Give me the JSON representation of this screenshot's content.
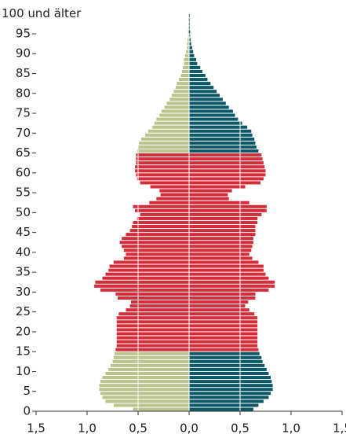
{
  "chart_data": {
    "type": "pyramid",
    "y": [
      0,
      1,
      2,
      3,
      4,
      5,
      6,
      7,
      8,
      9,
      10,
      11,
      12,
      13,
      14,
      15,
      16,
      17,
      18,
      19,
      20,
      21,
      22,
      23,
      24,
      25,
      26,
      27,
      28,
      29,
      30,
      31,
      32,
      33,
      34,
      35,
      36,
      37,
      38,
      39,
      40,
      41,
      42,
      43,
      44,
      45,
      46,
      47,
      48,
      49,
      50,
      51,
      52,
      53,
      54,
      55,
      56,
      57,
      58,
      59,
      60,
      61,
      62,
      63,
      64,
      65,
      66,
      67,
      68,
      69,
      70,
      71,
      72,
      73,
      74,
      75,
      76,
      77,
      78,
      79,
      80,
      81,
      82,
      83,
      84,
      85,
      86,
      87,
      88,
      89,
      90,
      91,
      92,
      93,
      94,
      95,
      96,
      97,
      98,
      99
    ],
    "series": [
      {
        "direction": "left",
        "values": [
          0.55,
          0.74,
          0.82,
          0.85,
          0.87,
          0.88,
          0.88,
          0.87,
          0.85,
          0.82,
          0.79,
          0.77,
          0.75,
          0.74,
          0.73,
          0.72,
          0.71,
          0.71,
          0.71,
          0.71,
          0.71,
          0.71,
          0.71,
          0.71,
          0.69,
          0.62,
          0.58,
          0.57,
          0.7,
          0.72,
          0.87,
          0.93,
          0.92,
          0.85,
          0.82,
          0.79,
          0.78,
          0.74,
          0.64,
          0.62,
          0.64,
          0.66,
          0.68,
          0.66,
          0.62,
          0.58,
          0.56,
          0.55,
          0.51,
          0.48,
          0.53,
          0.55,
          0.39,
          0.32,
          0.28,
          0.29,
          0.38,
          0.48,
          0.51,
          0.52,
          0.53,
          0.53,
          0.52,
          0.52,
          0.52,
          0.51,
          0.5,
          0.49,
          0.47,
          0.43,
          0.4,
          0.36,
          0.34,
          0.32,
          0.29,
          0.27,
          0.24,
          0.22,
          0.19,
          0.17,
          0.15,
          0.13,
          0.12,
          0.1,
          0.08,
          0.07,
          0.06,
          0.05,
          0.05,
          0.04,
          0.03,
          0.02,
          0.02,
          0.015,
          0.01,
          0.01,
          0.005,
          0.005,
          0.005,
          0.005
        ],
        "colors": [
          "#bcc48e",
          "#bcc48e",
          "#bcc48e",
          "#bcc48e",
          "#bcc48e",
          "#bcc48e",
          "#bcc48e",
          "#bcc48e",
          "#bcc48e",
          "#bcc48e",
          "#bcc48e",
          "#bcc48e",
          "#bcc48e",
          "#bcc48e",
          "#bcc48e",
          "#d42e3a",
          "#d42e3a",
          "#d42e3a",
          "#d42e3a",
          "#d42e3a",
          "#d42e3a",
          "#d42e3a",
          "#d42e3a",
          "#d42e3a",
          "#d42e3a",
          "#d42e3a",
          "#d42e3a",
          "#d42e3a",
          "#d42e3a",
          "#d42e3a",
          "#d42e3a",
          "#d42e3a",
          "#d42e3a",
          "#d42e3a",
          "#d42e3a",
          "#d42e3a",
          "#d42e3a",
          "#d42e3a",
          "#d42e3a",
          "#d42e3a",
          "#d42e3a",
          "#d42e3a",
          "#d42e3a",
          "#d42e3a",
          "#d42e3a",
          "#d42e3a",
          "#d42e3a",
          "#d42e3a",
          "#d42e3a",
          "#d42e3a",
          "#d42e3a",
          "#d42e3a",
          "#d42e3a",
          "#d42e3a",
          "#d42e3a",
          "#d42e3a",
          "#d42e3a",
          "#d42e3a",
          "#d42e3a",
          "#d42e3a",
          "#d42e3a",
          "#d42e3a",
          "#d42e3a",
          "#d42e3a",
          "#d42e3a",
          "#bcc48e",
          "#bcc48e",
          "#bcc48e",
          "#bcc48e",
          "#bcc48e",
          "#bcc48e",
          "#bcc48e",
          "#bcc48e",
          "#bcc48e",
          "#bcc48e",
          "#bcc48e",
          "#bcc48e",
          "#bcc48e",
          "#bcc48e",
          "#bcc48e",
          "#bcc48e",
          "#bcc48e",
          "#bcc48e",
          "#bcc48e",
          "#bcc48e",
          "#bcc48e",
          "#bcc48e",
          "#bcc48e",
          "#bcc48e",
          "#bcc48e",
          "#bcc48e",
          "#bcc48e",
          "#bcc48e",
          "#bcc48e",
          "#bcc48e",
          "#bcc48e",
          "#bcc48e",
          "#bcc48e",
          "#bcc48e",
          "#bcc48e"
        ]
      },
      {
        "direction": "right",
        "values": [
          0.63,
          0.68,
          0.73,
          0.78,
          0.8,
          0.82,
          0.82,
          0.81,
          0.8,
          0.78,
          0.76,
          0.74,
          0.72,
          0.71,
          0.69,
          0.68,
          0.67,
          0.67,
          0.67,
          0.67,
          0.67,
          0.67,
          0.67,
          0.67,
          0.64,
          0.59,
          0.55,
          0.58,
          0.65,
          0.65,
          0.78,
          0.84,
          0.84,
          0.78,
          0.75,
          0.73,
          0.73,
          0.68,
          0.62,
          0.59,
          0.61,
          0.62,
          0.63,
          0.63,
          0.65,
          0.65,
          0.65,
          0.67,
          0.67,
          0.71,
          0.76,
          0.76,
          0.59,
          0.39,
          0.38,
          0.42,
          0.55,
          0.7,
          0.73,
          0.75,
          0.75,
          0.74,
          0.73,
          0.72,
          0.71,
          0.68,
          0.66,
          0.65,
          0.64,
          0.62,
          0.61,
          0.57,
          0.52,
          0.48,
          0.45,
          0.43,
          0.39,
          0.36,
          0.33,
          0.3,
          0.27,
          0.24,
          0.21,
          0.18,
          0.16,
          0.13,
          0.11,
          0.08,
          0.07,
          0.05,
          0.04,
          0.03,
          0.02,
          0.015,
          0.01,
          0.01,
          0.005,
          0.005,
          0.005,
          0.005
        ],
        "colors": [
          "#0e5968",
          "#0e5968",
          "#0e5968",
          "#0e5968",
          "#0e5968",
          "#0e5968",
          "#0e5968",
          "#0e5968",
          "#0e5968",
          "#0e5968",
          "#0e5968",
          "#0e5968",
          "#0e5968",
          "#0e5968",
          "#0e5968",
          "#d42e3a",
          "#d42e3a",
          "#d42e3a",
          "#d42e3a",
          "#d42e3a",
          "#d42e3a",
          "#d42e3a",
          "#d42e3a",
          "#d42e3a",
          "#d42e3a",
          "#d42e3a",
          "#d42e3a",
          "#d42e3a",
          "#d42e3a",
          "#d42e3a",
          "#d42e3a",
          "#d42e3a",
          "#d42e3a",
          "#d42e3a",
          "#d42e3a",
          "#d42e3a",
          "#d42e3a",
          "#d42e3a",
          "#d42e3a",
          "#d42e3a",
          "#d42e3a",
          "#d42e3a",
          "#d42e3a",
          "#d42e3a",
          "#d42e3a",
          "#d42e3a",
          "#d42e3a",
          "#d42e3a",
          "#d42e3a",
          "#d42e3a",
          "#d42e3a",
          "#d42e3a",
          "#d42e3a",
          "#d42e3a",
          "#d42e3a",
          "#d42e3a",
          "#d42e3a",
          "#d42e3a",
          "#d42e3a",
          "#d42e3a",
          "#d42e3a",
          "#d42e3a",
          "#d42e3a",
          "#d42e3a",
          "#d42e3a",
          "#0e5968",
          "#0e5968",
          "#0e5968",
          "#0e5968",
          "#0e5968",
          "#0e5968",
          "#0e5968",
          "#0e5968",
          "#0e5968",
          "#0e5968",
          "#0e5968",
          "#0e5968",
          "#0e5968",
          "#0e5968",
          "#0e5968",
          "#0e5968",
          "#0e5968",
          "#0e5968",
          "#0e5968",
          "#0e5968",
          "#0e5968",
          "#0e5968",
          "#0e5968",
          "#0e5968",
          "#0e5968",
          "#0e5968",
          "#0e5968",
          "#0e5968",
          "#0e5968",
          "#0e5968",
          "#0e5968",
          "#0e5968",
          "#0e5968",
          "#0e5968",
          "#0e5968"
        ]
      }
    ],
    "xlim": [
      -1.5,
      1.5
    ],
    "xticks": [
      {
        "value": -1.5,
        "label": "1,5"
      },
      {
        "value": -1,
        "label": "1,0"
      },
      {
        "value": -0.5,
        "label": "0,5"
      },
      {
        "value": 0,
        "label": "0,0"
      },
      {
        "value": 0.5,
        "label": "0,5"
      },
      {
        "value": 1,
        "label": "1,0"
      },
      {
        "value": 1.5,
        "label": "1,5"
      }
    ],
    "ylim": [
      0,
      100
    ],
    "yticks": [
      0,
      5,
      10,
      15,
      20,
      25,
      30,
      35,
      40,
      45,
      50,
      55,
      60,
      65,
      70,
      75,
      80,
      85,
      90,
      95,
      {
        "value": 100,
        "label": "100 und älter"
      }
    ],
    "grid": true
  }
}
